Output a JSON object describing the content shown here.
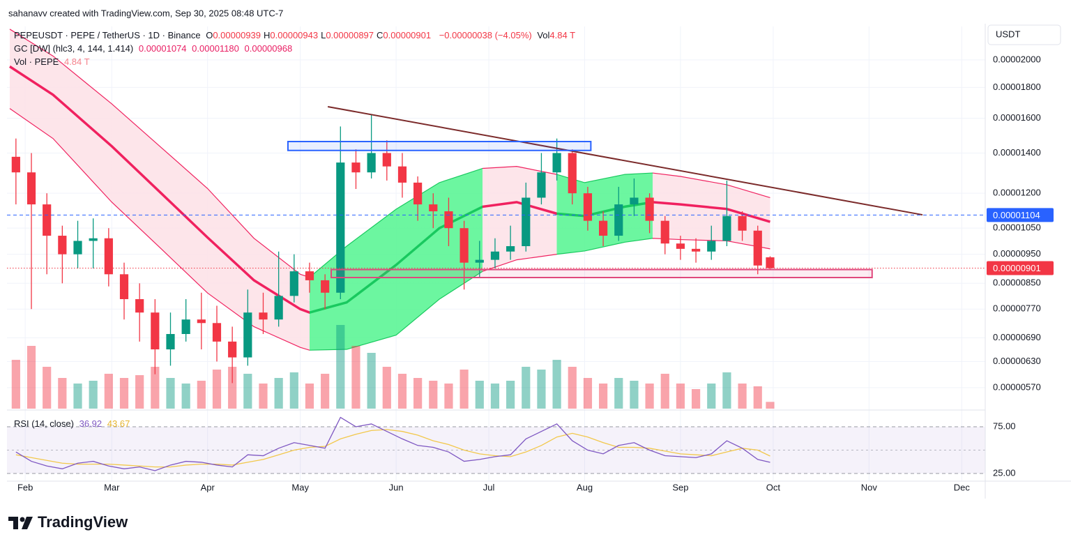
{
  "header": {
    "credit": "sahanavv created with TradingView.com, Sep 30, 2025 08:48 UTC-7"
  },
  "footer": {
    "brand": "TradingView"
  },
  "chart_data": {
    "type": "candlestick",
    "symbol": "PEPEUSDT · PEPE / TetherUS · 1D · Binance",
    "ohlc_legend": [
      {
        "label": "O",
        "value": "0.00000939"
      },
      {
        "label": "H",
        "value": "0.00000943"
      },
      {
        "label": "L",
        "value": "0.00000897"
      },
      {
        "label": "C",
        "value": "0.00000901"
      }
    ],
    "change": "−0.00000038 (−4.05%)",
    "volume_label": "Vol",
    "volume_value": "4.84 T",
    "indicator": {
      "name": "GC [DW] (hlc3, 4, 144, 1.414)",
      "values": [
        "0.00001074",
        "0.00001180",
        "0.00000968"
      ]
    },
    "volume_legend": {
      "name": "Vol · PEPE",
      "value": "4.84 T"
    },
    "axis_unit": "USDT",
    "log_scale": true,
    "grid": true,
    "up_color": "#089981",
    "down_color": "#f23645",
    "x": [
      28,
      33,
      38,
      43,
      48,
      53,
      58,
      63,
      68,
      73,
      78,
      83,
      88,
      93,
      98,
      103,
      108,
      113,
      118,
      123,
      128,
      133,
      138,
      143,
      148,
      153,
      158,
      163,
      168,
      173,
      178,
      183,
      188,
      193,
      198,
      203,
      208,
      213,
      218,
      223,
      228,
      233,
      238,
      243,
      248,
      253,
      258,
      263,
      268,
      272
    ],
    "open": [
      1.38e-05,
      1.3e-05,
      1.15e-05,
      1.02e-05,
      9.5e-06,
      1e-05,
      1.01e-05,
      8.8e-06,
      8e-06,
      7.6e-06,
      6.6e-06,
      7e-06,
      7.4e-06,
      7.3e-06,
      6.8e-06,
      6.4e-06,
      7.6e-06,
      7.4e-06,
      8.1e-06,
      8.9e-06,
      8.6e-06,
      8.2e-06,
      1.35e-05,
      1.3e-05,
      1.4e-05,
      1.33e-05,
      1.25e-05,
      1.15e-05,
      1.12e-05,
      1.05e-05,
      9.2e-06,
      9.3e-06,
      9.6e-06,
      9.8e-06,
      1.18e-05,
      1.3e-05,
      1.4e-05,
      1.2e-05,
      1.08e-05,
      1.02e-05,
      1.15e-05,
      1.18e-05,
      1.08e-05,
      9.9e-06,
      9.7e-06,
      9.6e-06,
      1e-05,
      1.1e-05,
      1.04e-05,
      9.39e-06
    ],
    "high": [
      1.48e-05,
      1.4e-05,
      1.2e-05,
      1.06e-05,
      1.08e-05,
      1.09e-05,
      1.05e-05,
      9.2e-06,
      8.5e-06,
      8e-06,
      7.6e-06,
      8e-06,
      8.2e-06,
      7.8e-06,
      7.2e-06,
      8.3e-06,
      8.2e-06,
      9.6e-06,
      9.5e-06,
      9.2e-06,
      8.8e-06,
      1.55e-05,
      1.42e-05,
      1.62e-05,
      1.47e-05,
      1.4e-05,
      1.28e-05,
      1.2e-05,
      1.18e-05,
      1.08e-05,
      1e-05,
      1.01e-05,
      1.06e-05,
      1.25e-05,
      1.4e-05,
      1.48e-05,
      1.42e-05,
      1.23e-05,
      1.12e-05,
      1.23e-05,
      1.27e-05,
      1.2e-05,
      1.1e-05,
      1.02e-05,
      1.01e-05,
      1.06e-05,
      1.26e-05,
      1.12e-05,
      1.06e-05,
      9.43e-06
    ],
    "low": [
      1.15e-05,
      7.7e-06,
      8.8e-06,
      8.5e-06,
      9e-06,
      9e-06,
      8.4e-06,
      7.4e-06,
      6.8e-06,
      6e-06,
      6.2e-06,
      6.8e-06,
      6.6e-06,
      6.3e-06,
      5.8e-06,
      6.2e-06,
      7e-06,
      7.2e-06,
      7.9e-06,
      8.2e-06,
      7.7e-06,
      8e-06,
      1.22e-05,
      1.27e-05,
      1.26e-05,
      1.18e-05,
      1.08e-05,
      1.05e-05,
      9.8e-06,
      8.3e-06,
      8.7e-06,
      9e-06,
      9.3e-06,
      9.6e-06,
      1.15e-05,
      1.26e-05,
      1.15e-05,
      1.04e-05,
      9.8e-06,
      1e-05,
      1.1e-05,
      1.03e-05,
      9.5e-06,
      9.3e-06,
      9.2e-06,
      9.3e-06,
      9.8e-06,
      1e-05,
      8.8e-06,
      8.97e-06
    ],
    "close": [
      1.3e-05,
      1.15e-05,
      1.02e-05,
      9.5e-06,
      1e-05,
      1.01e-05,
      8.8e-06,
      8e-06,
      7.6e-06,
      6.6e-06,
      7e-06,
      7.4e-06,
      7.3e-06,
      6.8e-06,
      6.4e-06,
      7.6e-06,
      7.4e-06,
      8.1e-06,
      8.9e-06,
      8.6e-06,
      8.2e-06,
      1.35e-05,
      1.3e-05,
      1.4e-05,
      1.33e-05,
      1.25e-05,
      1.15e-05,
      1.12e-05,
      1.05e-05,
      9.2e-06,
      9.3e-06,
      9.6e-06,
      9.8e-06,
      1.18e-05,
      1.3e-05,
      1.4e-05,
      1.2e-05,
      1.08e-05,
      1.02e-05,
      1.15e-05,
      1.18e-05,
      1.08e-05,
      9.9e-06,
      9.7e-06,
      9.6e-06,
      1e-05,
      1.1e-05,
      1.04e-05,
      9.1e-06,
      9.01e-06
    ],
    "volume": [
      35,
      45,
      30,
      22,
      18,
      20,
      25,
      22,
      24,
      30,
      22,
      18,
      20,
      28,
      30,
      25,
      18,
      22,
      26,
      18,
      25,
      60,
      45,
      40,
      30,
      25,
      22,
      20,
      18,
      28,
      20,
      18,
      20,
      30,
      28,
      35,
      30,
      22,
      18,
      22,
      20,
      18,
      25,
      18,
      14,
      18,
      26,
      18,
      16,
      4.84
    ],
    "vlim": [
      0,
      70
    ],
    "xlim": [
      25.1,
      341.6
    ],
    "xticks": [
      {
        "value": 31,
        "label": "Feb"
      },
      {
        "value": 59,
        "label": "Mar"
      },
      {
        "value": 90,
        "label": "Apr"
      },
      {
        "value": 120,
        "label": "May"
      },
      {
        "value": 151,
        "label": "Jun"
      },
      {
        "value": 181,
        "label": "Jul"
      },
      {
        "value": 212,
        "label": "Aug"
      },
      {
        "value": 243,
        "label": "Sep"
      },
      {
        "value": 273,
        "label": "Oct"
      },
      {
        "value": 304,
        "label": "Nov"
      },
      {
        "value": 334,
        "label": "Dec"
      }
    ],
    "ylim": [
      5.26e-06,
      2.273e-05
    ],
    "yticks": [
      {
        "value": 2e-05,
        "label": "0.00002000"
      },
      {
        "value": 1.8e-05,
        "label": "0.00001800"
      },
      {
        "value": 1.6e-05,
        "label": "0.00001600"
      },
      {
        "value": 1.4e-05,
        "label": "0.00001400"
      },
      {
        "value": 1.2e-05,
        "label": "0.00001200"
      },
      {
        "value": 1.05e-05,
        "label": "0.00001050"
      },
      {
        "value": 9.5e-06,
        "label": "0.00000950"
      },
      {
        "value": 8.5e-06,
        "label": "0.00000850"
      },
      {
        "value": 7.7e-06,
        "label": "0.00000770"
      },
      {
        "value": 6.9e-06,
        "label": "0.00000690"
      },
      {
        "value": 6.3e-06,
        "label": "0.00000630"
      },
      {
        "value": 5.7e-06,
        "label": "0.00000570"
      }
    ],
    "price_lines": [
      {
        "value": 1.104e-05,
        "color": "#2962ff",
        "style": "dashed"
      },
      {
        "value": 9.01e-06,
        "color": "#f23645",
        "style": "dotted"
      }
    ],
    "channel": {
      "x": [
        26,
        40,
        59,
        75,
        90,
        105,
        120,
        123,
        135,
        151,
        165,
        179,
        190,
        203,
        212,
        225,
        234,
        243,
        258,
        272
      ],
      "upper": [
        2.25e-05,
        2.03e-05,
        1.69e-05,
        1.43e-05,
        1.222e-05,
        1.01e-05,
        8.8e-06,
        8.7e-06,
        9.8e-06,
        1.129e-05,
        1.25e-05,
        1.32e-05,
        1.33e-05,
        1.29e-05,
        1.25e-05,
        1.29e-05,
        1.297e-05,
        1.28e-05,
        1.24e-05,
        1.18e-05
      ],
      "middle": [
        1.95e-05,
        1.75e-05,
        1.437e-05,
        1.2e-05,
        1.013e-05,
        8.6e-06,
        7.7e-06,
        7.6e-06,
        7.9e-06,
        9.12e-06,
        1.05e-05,
        1.14e-05,
        1.16e-05,
        1.11e-05,
        1.1e-05,
        1.14e-05,
        1.16e-05,
        1.15e-05,
        1.13e-05,
        1.076e-05
      ],
      "lower": [
        1.66e-05,
        1.48e-05,
        1.16e-05,
        9.7e-06,
        8.19e-06,
        7.2e-06,
        6.65e-06,
        6.58e-06,
        6.6e-06,
        6.97e-06,
        8e-06,
        8.9e-06,
        9.3e-06,
        9.5e-06,
        9.62e-06,
        9.95e-06,
        1.01e-05,
        1.005e-05,
        1e-05,
        9.7e-06
      ],
      "segments": [
        {
          "start": 26,
          "end": 123,
          "line": "#f0215f",
          "fill": "#fde2e8"
        },
        {
          "start": 123,
          "end": 179,
          "line": "#19c95f",
          "fill": "#5cf596"
        },
        {
          "start": 179,
          "end": 203,
          "line": "#f0215f",
          "fill": "#fde2e8"
        },
        {
          "start": 203,
          "end": 234,
          "line": "#19c95f",
          "fill": "#5cf596"
        },
        {
          "start": 234,
          "end": 272,
          "line": "#f0215f",
          "fill": "#fde2e8"
        }
      ]
    },
    "drawings": {
      "trendline": {
        "x": [
          128.9,
          321.3
        ],
        "y": [
          1.672e-05,
          1.105e-05
        ],
        "color": "#7b2a2a"
      },
      "boxes": [
        {
          "x": [
            116,
            214
          ],
          "y": [
            1.463e-05,
            1.414e-05
          ],
          "color": "#2962ff"
        },
        {
          "x": [
            130,
            305
          ],
          "y": [
            8.96e-06,
            8.69e-06
          ],
          "color": "#e0467c"
        }
      ]
    },
    "rsi": {
      "name": "RSI (14, close)",
      "values": [
        48,
        38,
        33,
        30,
        36,
        38,
        33,
        30,
        32,
        28,
        34,
        38,
        37,
        34,
        32,
        45,
        44,
        52,
        58,
        55,
        52,
        85,
        75,
        78,
        70,
        62,
        55,
        53,
        48,
        38,
        40,
        43,
        45,
        62,
        70,
        78,
        60,
        50,
        46,
        55,
        58,
        50,
        44,
        43,
        42,
        46,
        60,
        52,
        40,
        36.92
      ],
      "ma": [
        45,
        42,
        39,
        36,
        35,
        35,
        35,
        34,
        33,
        32,
        32,
        34,
        35,
        35,
        34,
        37,
        40,
        45,
        50,
        53,
        54,
        62,
        67,
        71,
        72,
        70,
        66,
        60,
        56,
        50,
        46,
        44,
        43,
        48,
        55,
        64,
        68,
        64,
        58,
        53,
        53,
        52,
        49,
        46,
        45,
        44,
        48,
        52,
        50,
        43.67
      ],
      "color": "#7e57c2",
      "ma_color": "#f2c84b",
      "ylim": [
        16.8,
        91.4
      ],
      "yticks": [
        {
          "value": 75,
          "label": "75.00"
        },
        {
          "value": 25,
          "label": "25.00"
        }
      ],
      "midline": 50
    }
  }
}
